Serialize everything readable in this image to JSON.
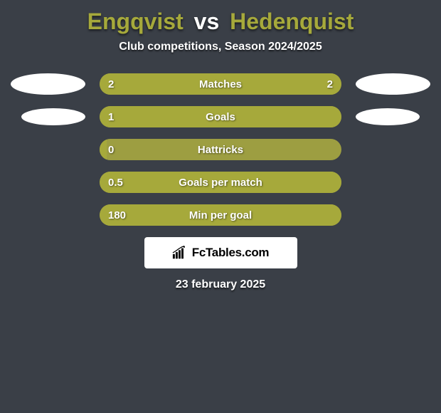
{
  "background_color": "#3a3f47",
  "title": {
    "player1": "Engqvist",
    "sep": "vs",
    "player2": "Hedenquist",
    "player1_color": "#a6a93b",
    "sep_color": "#ffffff",
    "player2_color": "#a6a93b",
    "fontsize": 32
  },
  "subtitle": "Club competitions, Season 2024/2025",
  "accent_left": "#a6a93b",
  "accent_right": "#a6a93b",
  "oval_color": "#ffffff",
  "bar_track_color": "#9d9e41",
  "stats": [
    {
      "label": "Matches",
      "left_value": "2",
      "right_value": "2",
      "left_pct": 50,
      "right_pct": 50,
      "show_left_oval": true,
      "show_right_oval": true,
      "left_fill_color": "#a6a93b",
      "right_fill_color": "#a6a93b"
    },
    {
      "label": "Goals",
      "left_value": "1",
      "right_value": "",
      "left_pct": 100,
      "right_pct": 0,
      "show_left_oval": true,
      "show_right_oval": true,
      "left_fill_color": "#a6a93b",
      "right_fill_color": "#a6a93b"
    },
    {
      "label": "Hattricks",
      "left_value": "0",
      "right_value": "",
      "left_pct": 3,
      "right_pct": 0,
      "show_left_oval": false,
      "show_right_oval": false,
      "left_fill_color": "#a6a93b",
      "right_fill_color": "#a6a93b"
    },
    {
      "label": "Goals per match",
      "left_value": "0.5",
      "right_value": "",
      "left_pct": 100,
      "right_pct": 0,
      "show_left_oval": false,
      "show_right_oval": false,
      "left_fill_color": "#a6a93b",
      "right_fill_color": "#a6a93b"
    },
    {
      "label": "Min per goal",
      "left_value": "180",
      "right_value": "",
      "left_pct": 100,
      "right_pct": 0,
      "show_left_oval": false,
      "show_right_oval": false,
      "left_fill_color": "#a6a93b",
      "right_fill_color": "#a6a93b"
    }
  ],
  "logo": {
    "bg_color": "#ffffff",
    "icon_color": "#000000",
    "text": "FcTables.com",
    "text_color": "#000000"
  },
  "date": "23 february 2025"
}
